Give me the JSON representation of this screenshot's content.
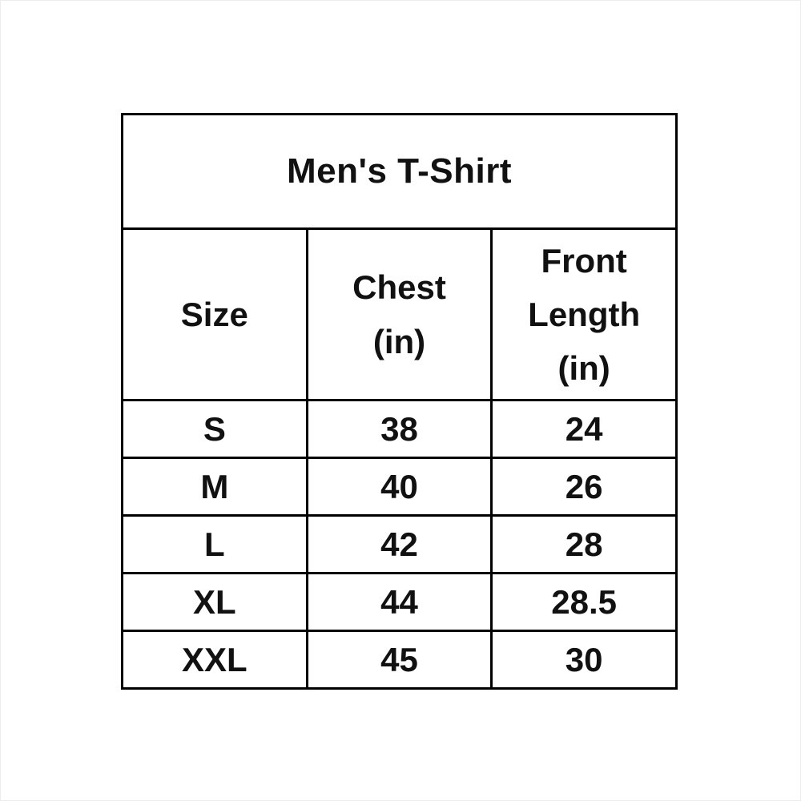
{
  "page": {
    "background_color": "#ffffff",
    "border_color": "#000000",
    "text_color": "#111111"
  },
  "table": {
    "title": "Men's T-Shirt",
    "columns": {
      "size": "Size",
      "chest": "Chest\n(in)",
      "front_length": "Front\nLength\n(in)"
    },
    "rows": [
      {
        "size": "S",
        "chest": "38",
        "front_length": "24"
      },
      {
        "size": "M",
        "chest": "40",
        "front_length": "26"
      },
      {
        "size": "L",
        "chest": "42",
        "front_length": "28"
      },
      {
        "size": "XL",
        "chest": "44",
        "front_length": "28.5"
      },
      {
        "size": "XXL",
        "chest": "45",
        "front_length": "30"
      }
    ]
  },
  "chart_data": {
    "type": "table",
    "title": "Men's T-Shirt",
    "columns": [
      "Size",
      "Chest (in)",
      "Front Length (in)"
    ],
    "rows": [
      [
        "S",
        38,
        24
      ],
      [
        "M",
        40,
        26
      ],
      [
        "L",
        42,
        28
      ],
      [
        "XL",
        44,
        28.5
      ],
      [
        "XXL",
        45,
        30
      ]
    ]
  }
}
